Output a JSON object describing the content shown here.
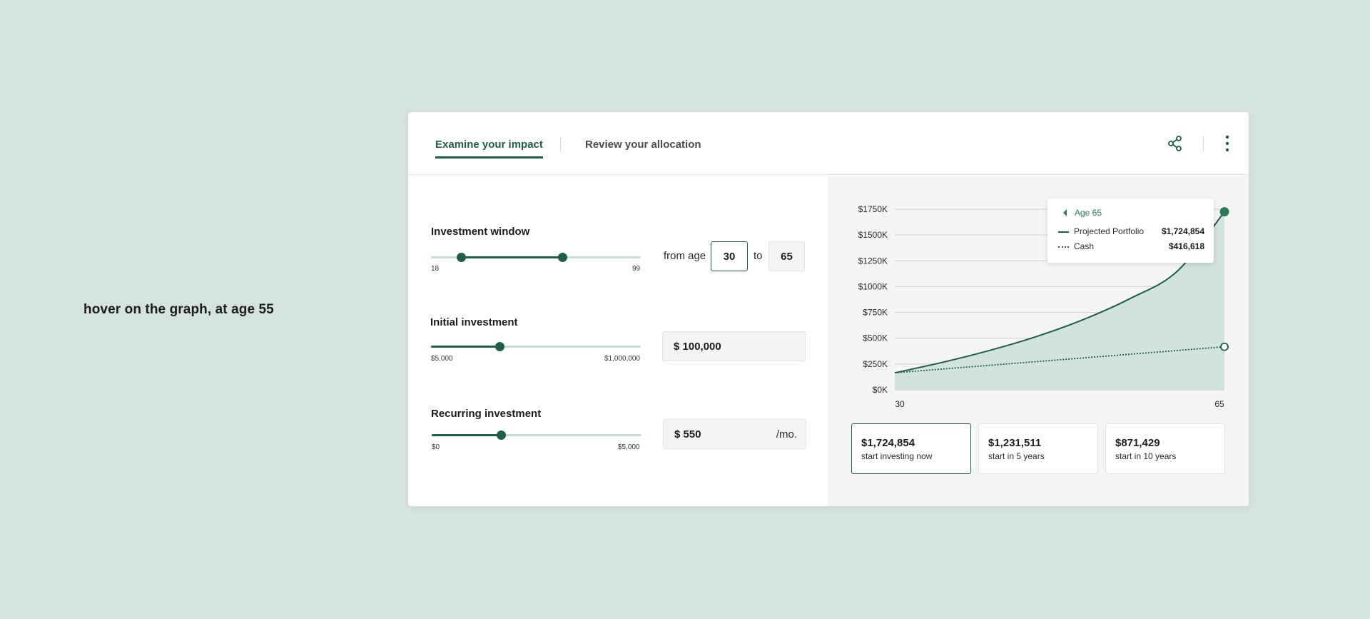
{
  "caption": "hover on the graph, at age 55",
  "tabs": [
    {
      "label": "Examine your impact",
      "active": true
    },
    {
      "label": "Review your allocation",
      "active": false
    }
  ],
  "header_icons": [
    "share-icon",
    "more-vertical-icon"
  ],
  "investment_window": {
    "label": "Investment window",
    "min_label": "18",
    "max_label": "99",
    "min": 18,
    "max": 99,
    "from_prefix": "from age",
    "from_value": "30",
    "to_text": "to",
    "to_value": "65"
  },
  "initial_investment": {
    "label": "Initial investment",
    "min_label": "$5,000",
    "max_label": "$1,000,000",
    "min": 5000,
    "max": 1000000,
    "value": 100000,
    "input_value": "$ 100,000"
  },
  "recurring_investment": {
    "label": "Recurring investment",
    "min_label": "$0",
    "max_label": "$5,000",
    "min": 0,
    "max": 5000,
    "value": 550,
    "input_value": "$ 550",
    "suffix": "/mo."
  },
  "tooltip": {
    "age_label": "Age 65",
    "rows": [
      {
        "name": "Projected Portfolio",
        "value": "$1,724,854"
      },
      {
        "name": "Cash",
        "value": "$416,618"
      }
    ]
  },
  "summary_cards": [
    {
      "value": "$1,724,854",
      "desc": "start investing now",
      "selected": true
    },
    {
      "value": "$1,231,511",
      "desc": "start in 5 years",
      "selected": false
    },
    {
      "value": "$871,429",
      "desc": "start in 10 years",
      "selected": false
    }
  ],
  "colors": {
    "accent": "#1e5f45",
    "area_fill": "#d2e2dc",
    "background": "#d5e3df"
  },
  "chart_data": {
    "type": "area",
    "x_tick_labels": [
      "30",
      "65"
    ],
    "y_tick_labels": [
      "$0K",
      "$250K",
      "$500K",
      "$750K",
      "$1000K",
      "$1250K",
      "$1500K",
      "$1750K"
    ],
    "y_ticks": [
      0,
      250,
      500,
      750,
      1000,
      1250,
      1500,
      1750
    ],
    "xlim": [
      30,
      65
    ],
    "ylim": [
      0,
      1750
    ],
    "grid": true,
    "series": [
      {
        "name": "Projected Portfolio",
        "style": "solid",
        "x": [
          30,
          35,
          40,
          45,
          50,
          55,
          60,
          65
        ],
        "values": [
          165,
          265,
          380,
          515,
          680,
          885,
          1150,
          1725
        ]
      },
      {
        "name": "Cash",
        "style": "dotted",
        "x": [
          30,
          65
        ],
        "values": [
          165,
          417
        ]
      }
    ]
  }
}
